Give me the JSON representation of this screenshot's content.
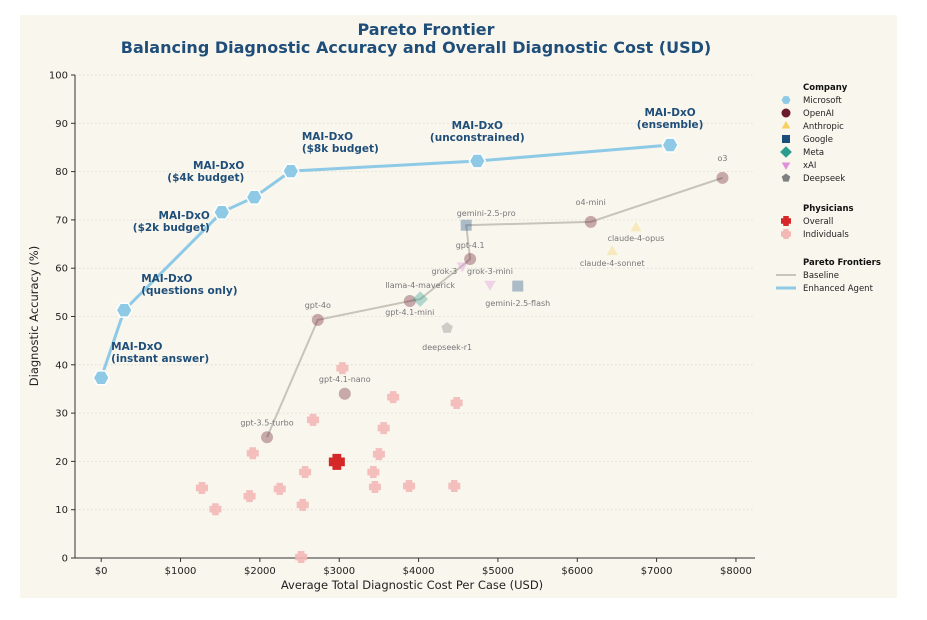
{
  "chart_data": {
    "type": "scatter",
    "title": [
      "Pareto Frontier",
      "Balancing Diagnostic Accuracy and Overall Diagnostic Cost (USD)"
    ],
    "xlabel": "Average Total Diagnostic Cost Per Case (USD)",
    "ylabel": "Diagnostic Accuracy (%)",
    "xlim": [
      -330,
      8240
    ],
    "ylim": [
      0,
      100
    ],
    "xticks": [
      0,
      1000,
      2000,
      3000,
      4000,
      5000,
      6000,
      7000,
      8000
    ],
    "xtick_labels": [
      "$0",
      "$1000",
      "$2000",
      "$3000",
      "$4000",
      "$5000",
      "$6000",
      "$7000",
      "$8000"
    ],
    "yticks": [
      0,
      10,
      20,
      30,
      40,
      50,
      60,
      70,
      80,
      90,
      100
    ],
    "ytick_labels": [
      "0",
      "10",
      "20",
      "30",
      "40",
      "50",
      "60",
      "70",
      "80",
      "90",
      "100"
    ],
    "grid": "horizontal dotted",
    "legend_position": "right",
    "colors": {
      "Microsoft": "#8ecae6",
      "OpenAI": "#6b1a2a",
      "Anthropic": "#f7d060",
      "Google": "#1a4f7a",
      "Meta": "#2a9d8f",
      "xAI": "#e08fd8",
      "Deepseek": "#7f7f7f",
      "Overall": "#d62728",
      "Individuals": "#f2b8b5",
      "Baseline": "#c8c4bc",
      "Enhanced Agent": "#8ecae6",
      "title": "#1f4e79"
    },
    "enhanced_agent": [
      {
        "label": [
          "MAI-DxO",
          "(instant answer)"
        ],
        "cost": 0,
        "accuracy": 37.3
      },
      {
        "label": [
          "MAI-DxO",
          "(questions only)"
        ],
        "cost": 290,
        "accuracy": 51.3
      },
      {
        "label": [
          "MAI-DxO",
          "($2k budget)"
        ],
        "cost": 1520,
        "accuracy": 71.6
      },
      {
        "label": [
          "MAI-DxO",
          "($4k budget)"
        ],
        "cost": 1930,
        "accuracy": 74.7
      },
      {
        "label": [
          "MAI-DxO",
          "($8k budget)"
        ],
        "cost": 2390,
        "accuracy": 80.1
      },
      {
        "label": [
          "MAI-DxO",
          "(unconstrained)"
        ],
        "cost": 4740,
        "accuracy": 82.2
      },
      {
        "label": [
          "MAI-DxO",
          "(ensemble)"
        ],
        "cost": 7170,
        "accuracy": 85.5
      }
    ],
    "models": [
      {
        "label": "gpt-3.5-turbo",
        "company": "OpenAI",
        "cost": 2090,
        "accuracy": 25.0
      },
      {
        "label": "gpt-4.1-nano",
        "company": "OpenAI",
        "cost": 3070,
        "accuracy": 34.0
      },
      {
        "label": "gpt-4o",
        "company": "OpenAI",
        "cost": 2730,
        "accuracy": 49.3
      },
      {
        "label": "gpt-4.1-mini",
        "company": "OpenAI",
        "cost": 3890,
        "accuracy": 53.2
      },
      {
        "label": "llama-4-maverick",
        "company": "Meta",
        "cost": 4020,
        "accuracy": 53.6
      },
      {
        "label": "grok-3",
        "company": "xAI",
        "cost": 4550,
        "accuracy": 60.5
      },
      {
        "label": "gpt-4.1",
        "company": "OpenAI",
        "cost": 4650,
        "accuracy": 61.9
      },
      {
        "label": "grok-3-mini",
        "company": "xAI",
        "cost": 4900,
        "accuracy": 56.7
      },
      {
        "label": "gemini-2.5-flash",
        "company": "Google",
        "cost": 5250,
        "accuracy": 56.3
      },
      {
        "label": "gemini-2.5-pro",
        "company": "Google",
        "cost": 4600,
        "accuracy": 68.9
      },
      {
        "label": "o4-mini",
        "company": "OpenAI",
        "cost": 6170,
        "accuracy": 69.6
      },
      {
        "label": "claude-4-opus",
        "company": "Anthropic",
        "cost": 6740,
        "accuracy": 68.3
      },
      {
        "label": "claude-4-sonnet",
        "company": "Anthropic",
        "cost": 6440,
        "accuracy": 63.4
      },
      {
        "label": "o3",
        "company": "OpenAI",
        "cost": 7830,
        "accuracy": 78.7
      },
      {
        "label": "deepseek-r1",
        "company": "Deepseek",
        "cost": 4360,
        "accuracy": 47.6
      }
    ],
    "baseline_frontier": [
      "gpt-3.5-turbo",
      "gpt-4o",
      "gpt-4.1-mini",
      "llama-4-maverick",
      "grok-3",
      "gpt-4.1",
      "gemini-2.5-pro",
      "o4-mini",
      "o3"
    ],
    "physicians_overall": {
      "cost": 2970,
      "accuracy": 19.9
    },
    "physicians_individuals": [
      {
        "cost": 3040,
        "accuracy": 39.3
      },
      {
        "cost": 3680,
        "accuracy": 33.3
      },
      {
        "cost": 4480,
        "accuracy": 32.1
      },
      {
        "cost": 2670,
        "accuracy": 28.6
      },
      {
        "cost": 3560,
        "accuracy": 26.9
      },
      {
        "cost": 1910,
        "accuracy": 21.7
      },
      {
        "cost": 3500,
        "accuracy": 21.5
      },
      {
        "cost": 2570,
        "accuracy": 17.8
      },
      {
        "cost": 3430,
        "accuracy": 17.8
      },
      {
        "cost": 1270,
        "accuracy": 14.5
      },
      {
        "cost": 2250,
        "accuracy": 14.3
      },
      {
        "cost": 3450,
        "accuracy": 14.7
      },
      {
        "cost": 3880,
        "accuracy": 14.9
      },
      {
        "cost": 4450,
        "accuracy": 14.9
      },
      {
        "cost": 1870,
        "accuracy": 12.8
      },
      {
        "cost": 1440,
        "accuracy": 10.1
      },
      {
        "cost": 2540,
        "accuracy": 11.0
      },
      {
        "cost": 2520,
        "accuracy": 0.2
      }
    ],
    "legend": {
      "company_title": "Company",
      "companies": [
        "Microsoft",
        "OpenAI",
        "Anthropic",
        "Google",
        "Meta",
        "xAI",
        "Deepseek"
      ],
      "physicians_title": "Physicians",
      "physicians": [
        "Overall",
        "Individuals"
      ],
      "frontiers_title": "Pareto Frontiers",
      "frontiers": [
        "Baseline",
        "Enhanced Agent"
      ]
    }
  }
}
